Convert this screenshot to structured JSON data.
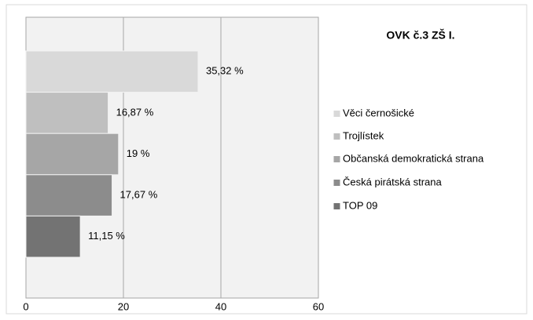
{
  "chart_data": {
    "type": "bar",
    "orientation": "horizontal",
    "title": "OVK č.3 ZŠ I.",
    "categories": [
      "Věci černošické",
      "Trojlístek",
      "Občanská demokratická strana",
      "Česká pirátská strana",
      "TOP 09"
    ],
    "values": [
      35.32,
      16.87,
      19,
      17.67,
      11.15
    ],
    "value_labels": [
      "35,32 %",
      "16,87 %",
      "19 %",
      "17,67 %",
      "11,15 %"
    ],
    "colors": [
      "#d9d9d9",
      "#bfbfbf",
      "#a6a6a6",
      "#8c8c8c",
      "#737373"
    ],
    "xlim": [
      0,
      60
    ],
    "xticks": [
      0,
      20,
      40,
      60
    ],
    "grid": true,
    "legend": "right"
  }
}
